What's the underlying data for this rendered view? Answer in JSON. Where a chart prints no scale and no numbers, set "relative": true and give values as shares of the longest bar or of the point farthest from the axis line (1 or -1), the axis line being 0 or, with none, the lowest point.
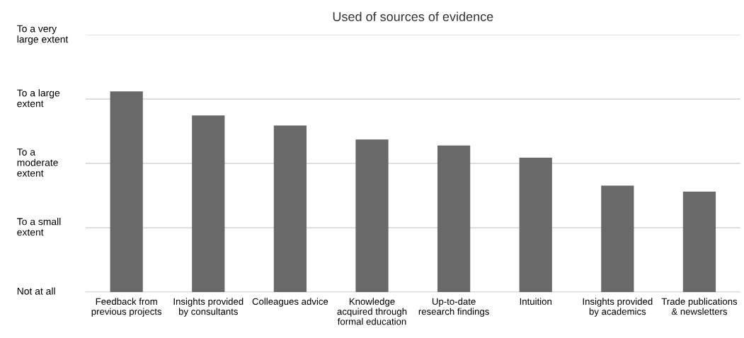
{
  "chart_data": {
    "type": "bar",
    "title": "Used of sources of evidence",
    "categories": [
      "Feedback from\nprevious projects",
      "Insights provided\nby consultants",
      "Colleagues advice",
      "Knowledge\nacquired through\nformal education",
      "Up-to-date\nresearch findings",
      "Intuition",
      "Insights provided\nby academics",
      "Trade publications\n& newsletters"
    ],
    "values": [
      1,
      0.88,
      0.83,
      0.76,
      0.73,
      0.67,
      0.53,
      0.5
    ],
    "relative": true,
    "color": "#696969",
    "annotations": [
      "Not at all",
      "To a small\nextent",
      "To a\nmoderate\nextent",
      "To a large\nextent",
      "To a very\nlarge extent"
    ],
    "grid": "y"
  }
}
